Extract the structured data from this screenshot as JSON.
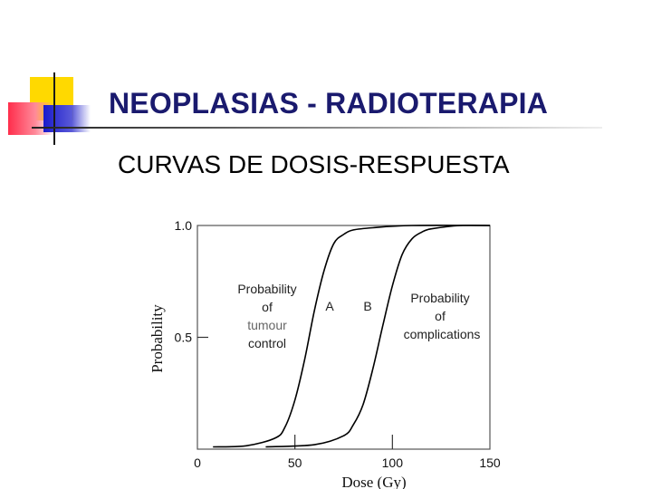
{
  "slide": {
    "title": "NEOPLASIAS - RADIOTERAPIA",
    "subtitle": "CURVAS DE DOSIS-RESPUESTA"
  },
  "colors": {
    "title": "#1a1a6e",
    "deco_yellow": "#ffd900",
    "deco_pink": "#ff2d4b",
    "deco_blue": "#1a1acc",
    "curve": "#000000"
  },
  "chart_data": {
    "type": "line",
    "title": "",
    "xlabel": "Dose (Gy)",
    "ylabel": "Probability",
    "xlim": [
      0,
      150
    ],
    "ylim": [
      0,
      1.0
    ],
    "x_ticks": [
      0,
      50,
      100,
      150
    ],
    "y_ticks": [
      0.5,
      1.0
    ],
    "grid": false,
    "series": [
      {
        "name": "A",
        "x": [
          8,
          25,
          40,
          45,
          50,
          55,
          60,
          65,
          70,
          75,
          80,
          90,
          110,
          150
        ],
        "y": [
          0.01,
          0.015,
          0.05,
          0.1,
          0.22,
          0.4,
          0.62,
          0.8,
          0.92,
          0.96,
          0.98,
          0.99,
          1.0,
          1.0
        ]
      },
      {
        "name": "B",
        "x": [
          35,
          60,
          75,
          80,
          85,
          90,
          95,
          100,
          105,
          110,
          115,
          120,
          135,
          150
        ],
        "y": [
          0.01,
          0.02,
          0.06,
          0.11,
          0.2,
          0.36,
          0.55,
          0.73,
          0.87,
          0.94,
          0.97,
          0.985,
          1.0,
          1.0
        ]
      }
    ],
    "annotations": {
      "tumour_control": [
        "Probability",
        "of",
        "tumour",
        "control"
      ],
      "complications": [
        "Probability",
        "of",
        "complications"
      ],
      "label_a": "A",
      "label_b": "B"
    }
  }
}
